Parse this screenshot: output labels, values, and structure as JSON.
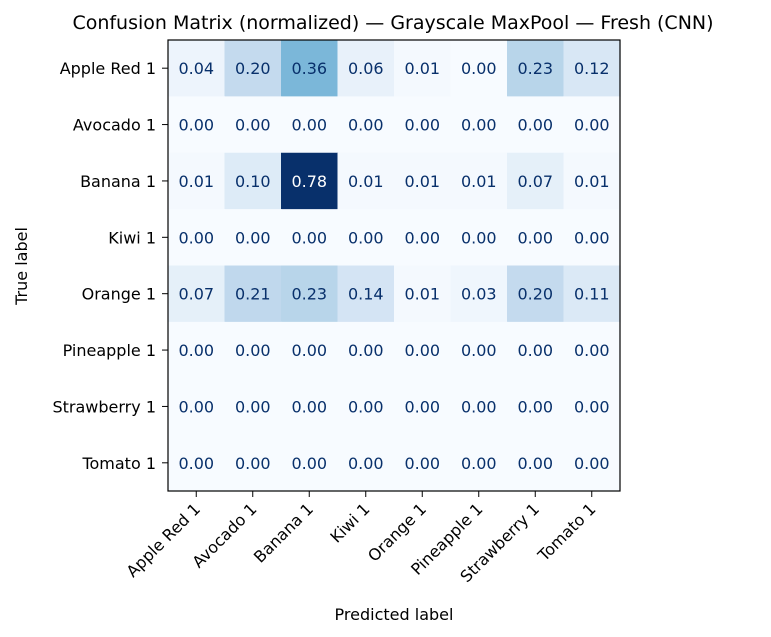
{
  "chart_data": {
    "type": "heatmap",
    "title": "Confusion Matrix (normalized) — Grayscale MaxPool — Fresh (CNN)",
    "xlabel": "Predicted label",
    "ylabel": "True label",
    "colormap": "Blues",
    "vmin": 0.0,
    "vmax": 0.78,
    "colorbar": false,
    "grid": false,
    "x_categories": [
      "Apple Red 1",
      "Avocado 1",
      "Banana 1",
      "Kiwi 1",
      "Orange 1",
      "Pineapple 1",
      "Strawberry 1",
      "Tomato 1"
    ],
    "y_categories": [
      "Apple Red 1",
      "Avocado 1",
      "Banana 1",
      "Kiwi 1",
      "Orange 1",
      "Pineapple 1",
      "Strawberry 1",
      "Tomato 1"
    ],
    "values": [
      [
        0.04,
        0.2,
        0.36,
        0.06,
        0.01,
        0.0,
        0.23,
        0.12
      ],
      [
        0.0,
        0.0,
        0.0,
        0.0,
        0.0,
        0.0,
        0.0,
        0.0
      ],
      [
        0.01,
        0.1,
        0.78,
        0.01,
        0.01,
        0.01,
        0.07,
        0.01
      ],
      [
        0.0,
        0.0,
        0.0,
        0.0,
        0.0,
        0.0,
        0.0,
        0.0
      ],
      [
        0.07,
        0.21,
        0.23,
        0.14,
        0.01,
        0.03,
        0.2,
        0.11
      ],
      [
        0.0,
        0.0,
        0.0,
        0.0,
        0.0,
        0.0,
        0.0,
        0.0
      ],
      [
        0.0,
        0.0,
        0.0,
        0.0,
        0.0,
        0.0,
        0.0,
        0.0
      ],
      [
        0.0,
        0.0,
        0.0,
        0.0,
        0.0,
        0.0,
        0.0,
        0.0
      ]
    ],
    "value_format": "0.00"
  }
}
